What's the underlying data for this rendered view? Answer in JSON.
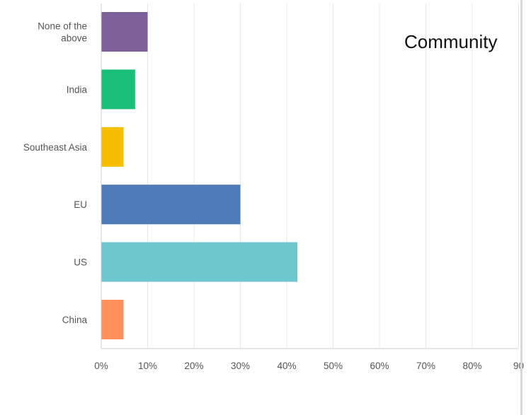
{
  "overlay": {
    "title": "Community"
  },
  "chart_data": {
    "type": "bar",
    "orientation": "horizontal",
    "categories": [
      [
        "None of the",
        "above"
      ],
      [
        "India"
      ],
      [
        "Southeast Asia"
      ],
      [
        "EU"
      ],
      [
        "US"
      ],
      [
        "China"
      ]
    ],
    "values": [
      10,
      7.3,
      4.8,
      30,
      42.3,
      4.8
    ],
    "colors": [
      "#7e5f99",
      "#19bf78",
      "#f5bf00",
      "#4f7bb7",
      "#6cc8cc",
      "#ff8f5a"
    ],
    "xticks": [
      "0%",
      "10%",
      "20%",
      "30%",
      "40%",
      "50%",
      "60%",
      "70%",
      "80%",
      "90"
    ],
    "xlim": [
      0,
      90
    ],
    "grid": true,
    "legend": "none"
  }
}
